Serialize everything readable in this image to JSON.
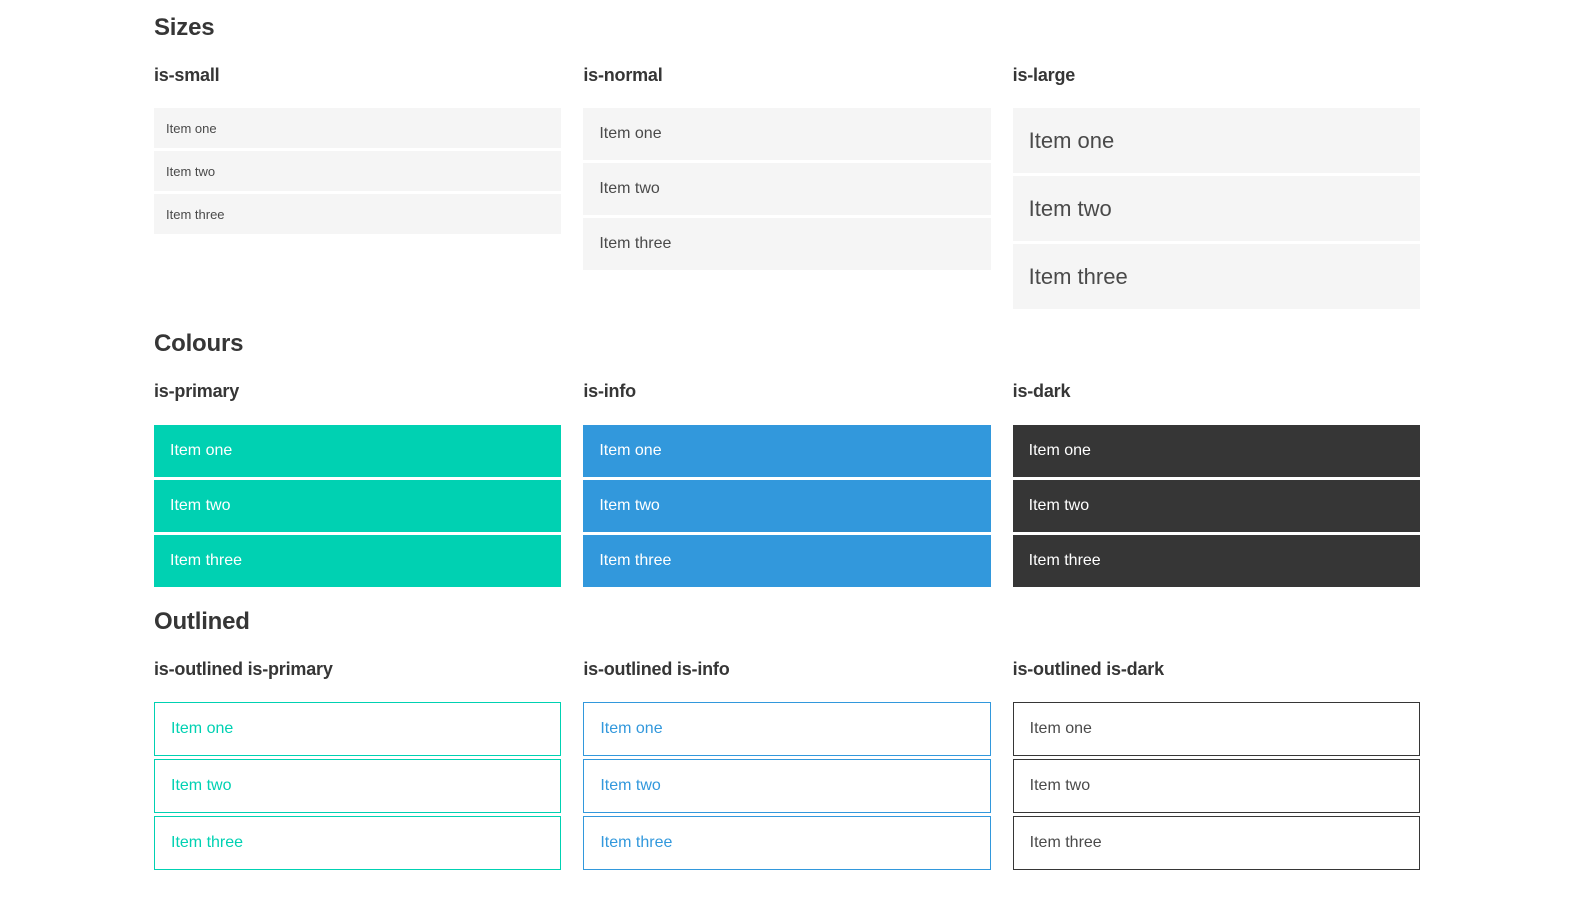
{
  "colors": {
    "page_bg": "#ffffff",
    "heading": "#363636",
    "item_bg": "#f5f5f5",
    "item_text": "#4a4a4a",
    "item_text_on_color": "#ffffff",
    "primary": "#00d1b2",
    "info": "#3298dc",
    "dark": "#363636"
  },
  "sections": [
    {
      "title": "Sizes",
      "groups": [
        {
          "label": "is-small",
          "items": [
            "Item one",
            "Item two",
            "Item three"
          ]
        },
        {
          "label": "is-normal",
          "items": [
            "Item one",
            "Item two",
            "Item three"
          ]
        },
        {
          "label": "is-large",
          "items": [
            "Item one",
            "Item two",
            "Item three"
          ]
        }
      ]
    },
    {
      "title": "Colours",
      "groups": [
        {
          "label": "is-primary",
          "items": [
            "Item one",
            "Item two",
            "Item three"
          ]
        },
        {
          "label": "is-info",
          "items": [
            "Item one",
            "Item two",
            "Item three"
          ]
        },
        {
          "label": "is-dark",
          "items": [
            "Item one",
            "Item two",
            "Item three"
          ]
        }
      ]
    },
    {
      "title": "Outlined",
      "groups": [
        {
          "label": "is-outlined is-primary",
          "items": [
            "Item one",
            "Item two",
            "Item three"
          ]
        },
        {
          "label": "is-outlined is-info",
          "items": [
            "Item one",
            "Item two",
            "Item three"
          ]
        },
        {
          "label": "is-outlined is-dark",
          "items": [
            "Item one",
            "Item two",
            "Item three"
          ]
        }
      ]
    }
  ]
}
